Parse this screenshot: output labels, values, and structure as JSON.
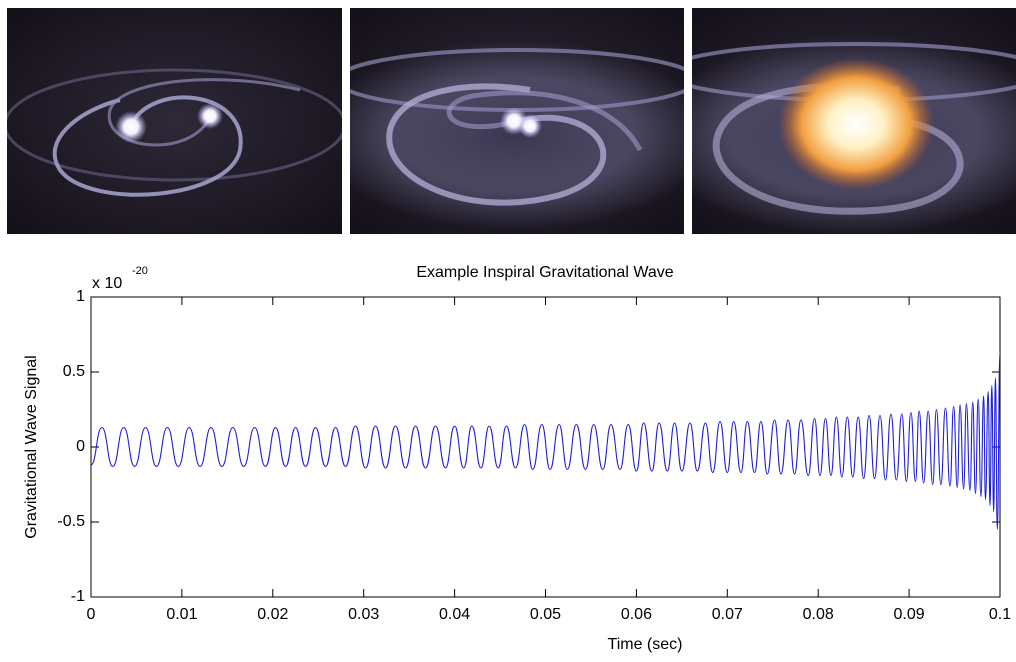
{
  "chart_data": {
    "type": "line",
    "title": "Example Inspiral Gravitational Wave",
    "x_label": "Time (sec)",
    "y_label": "Gravitational Wave Signal",
    "y_scale_base": "x 10",
    "y_scale_exponent": "-20",
    "color": "#1f1fd6",
    "xlim": [
      0,
      0.1
    ],
    "ylim": [
      -1,
      1
    ],
    "xticks": [
      0,
      0.01,
      0.02,
      0.03,
      0.04,
      0.05,
      0.06,
      0.07,
      0.08,
      0.09,
      0.1
    ],
    "yticks": [
      -1,
      -0.5,
      0,
      0.5,
      1
    ],
    "grid": false,
    "x": [
      0,
      0.0012,
      0.0024,
      0.0036,
      0.0048,
      0.006,
      0.0072,
      0.0084,
      0.0096,
      0.0108,
      0.012,
      0.0132,
      0.0144,
      0.0156,
      0.0168,
      0.018,
      0.0192,
      0.0203,
      0.0214,
      0.0225,
      0.0236,
      0.0247,
      0.0258,
      0.0269,
      0.028,
      0.0291,
      0.0302,
      0.0313,
      0.0324,
      0.0335,
      0.0346,
      0.0357,
      0.0368,
      0.0379,
      0.039,
      0.04,
      0.041,
      0.0419,
      0.0429,
      0.0438,
      0.0448,
      0.0457,
      0.0467,
      0.0477,
      0.0486,
      0.0496,
      0.0505,
      0.0515,
      0.0524,
      0.0534,
      0.0544,
      0.0553,
      0.0563,
      0.0572,
      0.0582,
      0.0591,
      0.06,
      0.0608,
      0.0617,
      0.0625,
      0.0634,
      0.0642,
      0.065,
      0.0659,
      0.0667,
      0.0676,
      0.0684,
      0.0692,
      0.07,
      0.0707,
      0.0715,
      0.0722,
      0.073,
      0.0737,
      0.0744,
      0.0752,
      0.0759,
      0.0767,
      0.0774,
      0.0781,
      0.0789,
      0.0796,
      0.0802,
      0.0808,
      0.0814,
      0.082,
      0.0826,
      0.0832,
      0.0838,
      0.0844,
      0.085,
      0.0856,
      0.0862,
      0.0868,
      0.0874,
      0.088,
      0.0886,
      0.0892,
      0.0897,
      0.0902,
      0.0907,
      0.0911,
      0.0916,
      0.0921,
      0.0926,
      0.093,
      0.0935,
      0.094,
      0.0945,
      0.0949,
      0.0953,
      0.0956,
      0.096,
      0.0963,
      0.0967,
      0.097,
      0.0973,
      0.0976,
      0.0979,
      0.0982,
      0.0984,
      0.0987,
      0.0989,
      0.0991,
      0.0993,
      0.0995,
      0.0997,
      0.1
    ],
    "values": [
      -0.12,
      0.13,
      -0.13,
      0.13,
      -0.13,
      0.13,
      -0.13,
      0.13,
      -0.13,
      0.13,
      -0.13,
      0.13,
      -0.13,
      0.13,
      -0.13,
      0.13,
      -0.13,
      0.13,
      -0.13,
      0.13,
      -0.13,
      0.13,
      -0.13,
      0.13,
      -0.13,
      0.14,
      -0.14,
      0.14,
      -0.14,
      0.14,
      -0.14,
      0.14,
      -0.14,
      0.14,
      -0.14,
      0.14,
      -0.14,
      0.14,
      -0.14,
      0.14,
      -0.14,
      0.14,
      -0.14,
      0.15,
      -0.15,
      0.15,
      -0.15,
      0.15,
      -0.15,
      0.15,
      -0.15,
      0.15,
      -0.15,
      0.15,
      -0.15,
      0.15,
      -0.16,
      0.16,
      -0.16,
      0.16,
      -0.16,
      0.16,
      -0.16,
      0.16,
      -0.16,
      0.16,
      -0.17,
      0.17,
      -0.17,
      0.17,
      -0.17,
      0.17,
      -0.17,
      0.17,
      -0.18,
      0.18,
      -0.18,
      0.18,
      -0.18,
      0.18,
      -0.19,
      0.19,
      -0.19,
      0.19,
      -0.19,
      0.2,
      -0.2,
      0.2,
      -0.2,
      0.2,
      -0.21,
      0.21,
      -0.21,
      0.21,
      -0.22,
      0.22,
      -0.22,
      0.22,
      -0.23,
      0.23,
      -0.23,
      0.24,
      -0.24,
      0.24,
      -0.25,
      0.25,
      -0.25,
      0.26,
      -0.26,
      0.27,
      -0.27,
      0.28,
      -0.28,
      0.29,
      -0.29,
      0.3,
      -0.31,
      0.32,
      -0.33,
      0.34,
      -0.35,
      0.37,
      -0.39,
      0.41,
      -0.43,
      0.46,
      -0.55,
      0.63
    ]
  }
}
